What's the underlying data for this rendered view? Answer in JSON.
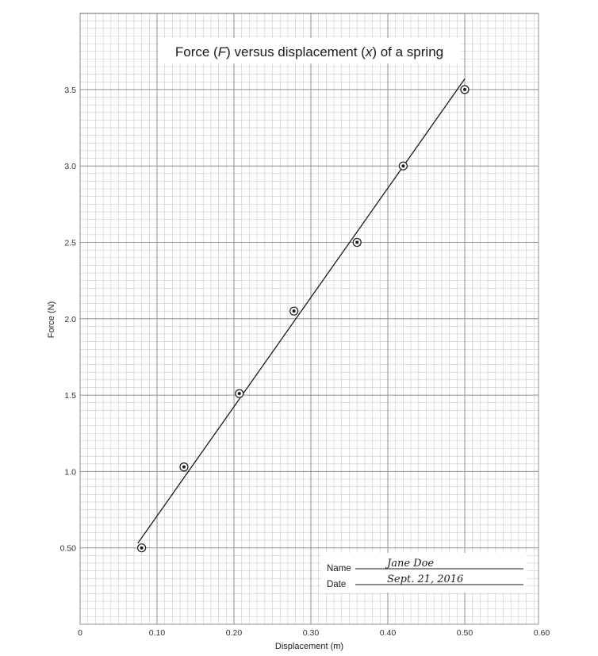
{
  "chart_data": {
    "type": "scatter",
    "title_parts": [
      "Force (",
      "F",
      ") versus displacement (",
      "x",
      ") of a spring"
    ],
    "xlabel": "Displacement (m)",
    "ylabel": "Force (N)",
    "xlim": [
      0,
      0.6
    ],
    "ylim": [
      0,
      4.0
    ],
    "x_ticks": [
      "0",
      "0.10",
      "0.20",
      "0.30",
      "0.40",
      "0.50",
      "0.60"
    ],
    "x_tick_values": [
      0,
      0.1,
      0.2,
      0.3,
      0.4,
      0.5,
      0.6
    ],
    "y_ticks": [
      "0.50",
      "1.0",
      "1.5",
      "2.0",
      "2.5",
      "3.0",
      "3.5"
    ],
    "y_tick_values": [
      0.5,
      1.0,
      1.5,
      2.0,
      2.5,
      3.0,
      3.5
    ],
    "grid": true,
    "points": [
      {
        "x": 0.08,
        "y": 0.5
      },
      {
        "x": 0.135,
        "y": 1.03
      },
      {
        "x": 0.207,
        "y": 1.51
      },
      {
        "x": 0.278,
        "y": 2.05
      },
      {
        "x": 0.36,
        "y": 2.5
      },
      {
        "x": 0.42,
        "y": 3.0
      },
      {
        "x": 0.5,
        "y": 3.5
      }
    ],
    "fit_line": {
      "x1": 0.075,
      "y1": 0.53,
      "x2": 0.5,
      "y2": 3.57
    }
  },
  "form": {
    "name_label": "Name",
    "name_value": "Jane Doe",
    "date_label": "Date",
    "date_value": "Sept. 21, 2016"
  },
  "colors": {
    "minor_grid": "#c9c9c9",
    "major_grid": "#8f8f8f",
    "ink": "#1a1a1a"
  }
}
